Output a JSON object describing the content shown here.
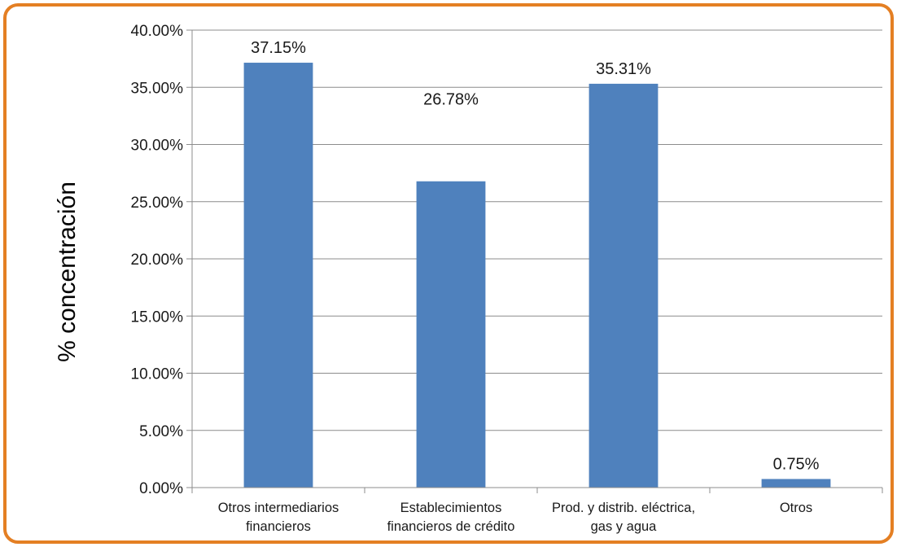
{
  "chart_data": {
    "type": "bar",
    "categories": [
      [
        "Otros intermediarios",
        "financieros"
      ],
      [
        "Establecimientos",
        "financieros de crédito"
      ],
      [
        "Prod. y distrib. eléctrica,",
        "gas y agua"
      ],
      [
        "Otros"
      ]
    ],
    "values": [
      37.15,
      26.78,
      35.31,
      0.75
    ],
    "data_labels": [
      "37.15%",
      "26.78%",
      "35.31%",
      "0.75%"
    ],
    "title": "",
    "xlabel": "",
    "ylabel": "%  concentración",
    "ylim": [
      0,
      40
    ],
    "yticks": [
      0,
      5,
      10,
      15,
      20,
      25,
      30,
      35,
      40
    ],
    "ytick_labels": [
      "0.00%",
      "5.00%",
      "10.00%",
      "15.00%",
      "20.00%",
      "25.00%",
      "30.00%",
      "35.00%",
      "40.00%"
    ],
    "grid": true,
    "legend": "none",
    "bar_color": "#4f81bd",
    "frame_color": "#e47f23"
  }
}
